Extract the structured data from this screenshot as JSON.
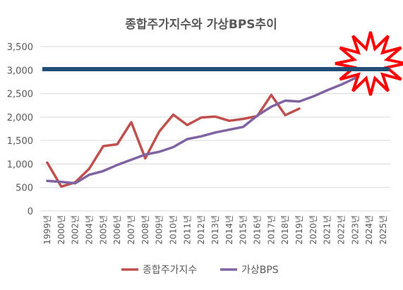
{
  "chart_data": {
    "type": "line",
    "title": "종합주가지수와 가상BPS추이",
    "xlabel": "",
    "ylabel": "",
    "categories": [
      "1999년",
      "2000년",
      "2002년",
      "2004년",
      "2005년",
      "2006년",
      "2007년",
      "2008년",
      "2009년",
      "2010년",
      "2011년",
      "2012년",
      "2013년",
      "2014년",
      "2015년",
      "2016년",
      "2017년",
      "2018년",
      "2019년",
      "2020년",
      "2021년",
      "2022년",
      "2023년",
      "2024년",
      "2025년"
    ],
    "ylim": [
      0,
      3500
    ],
    "yticks": [
      0,
      500,
      1000,
      1500,
      2000,
      2500,
      3000,
      3500
    ],
    "ytick_labels": [
      "0",
      "500",
      "1,000",
      "1,500",
      "2,000",
      "2,500",
      "3,000",
      "3,500"
    ],
    "grid": "horizontal",
    "legend_position": "bottom",
    "series": [
      {
        "name": "종합주가지수",
        "color": "#c0504d",
        "values": [
          1030,
          520,
          610,
          900,
          1380,
          1420,
          1890,
          1120,
          1690,
          2050,
          1830,
          1990,
          2010,
          1920,
          1960,
          2020,
          2470,
          2040,
          2180,
          null,
          null,
          null,
          null,
          null,
          null
        ]
      },
      {
        "name": "가상BPS",
        "color": "#8064a2",
        "values": [
          640,
          620,
          590,
          770,
          850,
          980,
          1090,
          1200,
          1260,
          1360,
          1530,
          1590,
          1670,
          1730,
          1790,
          2030,
          2220,
          2350,
          2330,
          2440,
          2570,
          2690,
          2830,
          2980,
          3100
        ]
      }
    ],
    "reference_line": {
      "value": 3020,
      "color": "#1f4e79"
    },
    "starburst": {
      "color": "#ff0000"
    }
  }
}
